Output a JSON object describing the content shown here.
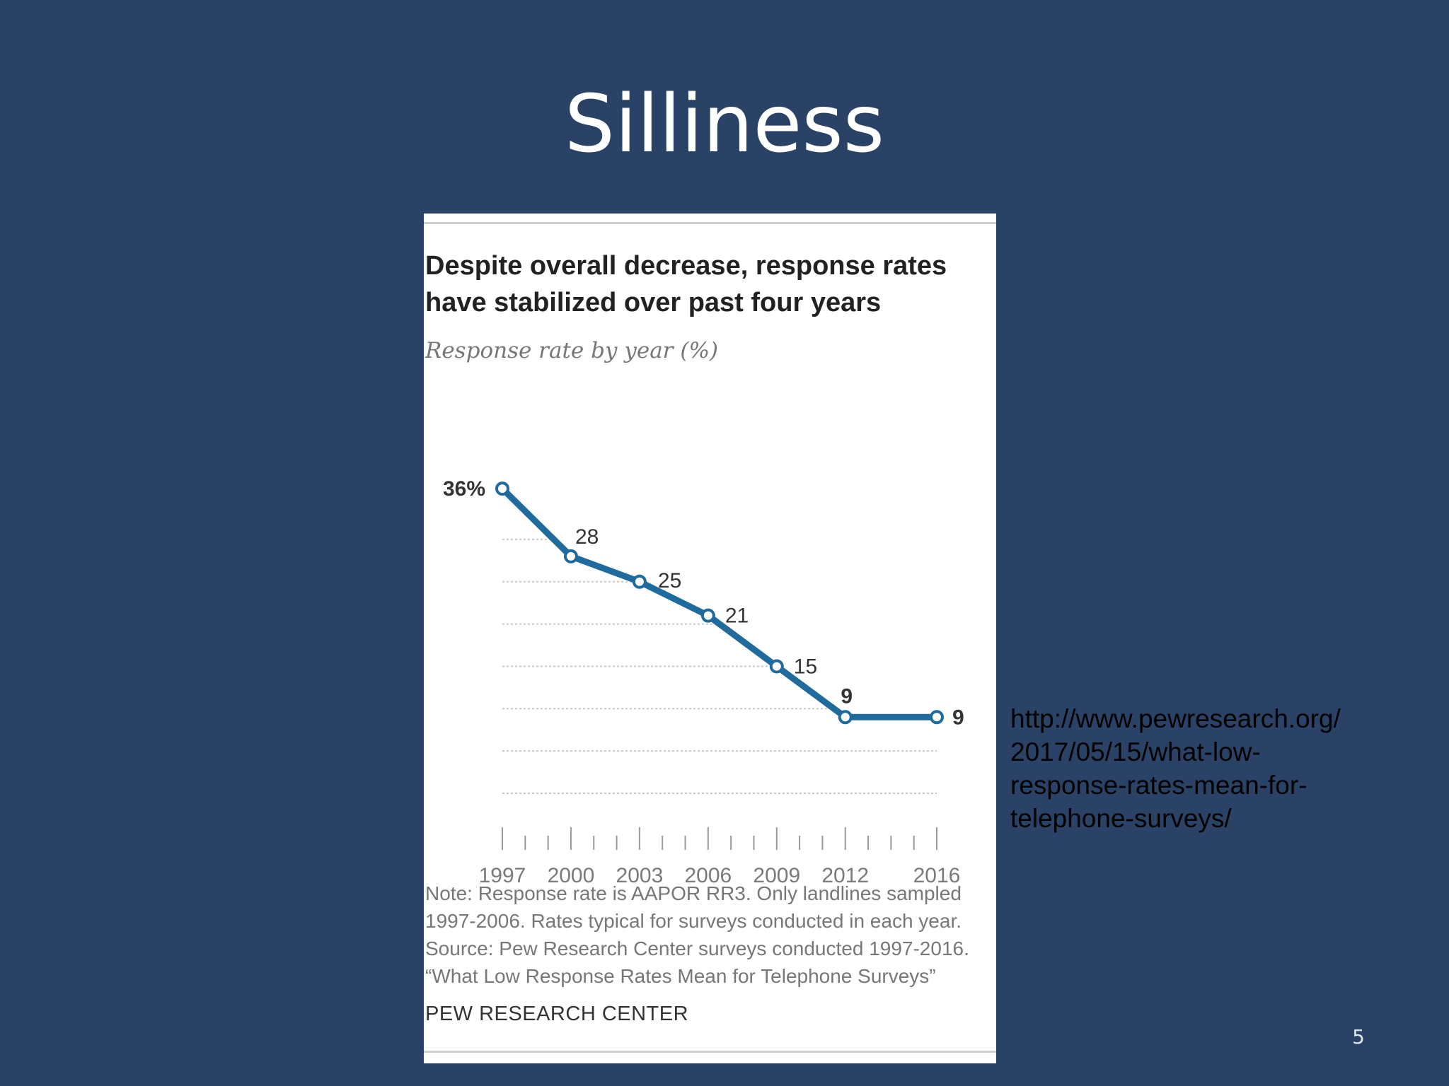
{
  "slide": {
    "title": "Silliness",
    "source_url_lines": [
      "http://www.pewresearch.org/",
      "2017/05/15/what-low-",
      "response-rates-mean-for-",
      "telephone-surveys/"
    ],
    "page_number": "5"
  },
  "chart_data": {
    "type": "line",
    "title_lines": [
      "Despite overall decrease, response rates",
      "have stabilized over past four years"
    ],
    "subtitle": "Response rate by year (%)",
    "x": [
      1997,
      2000,
      2003,
      2006,
      2009,
      2012,
      2016
    ],
    "values": [
      36,
      28,
      25,
      21,
      15,
      9,
      9
    ],
    "data_labels": [
      "36%",
      "28",
      "25",
      "21",
      "15",
      "9",
      "9"
    ],
    "tick_labels": [
      "1997",
      "2000",
      "2003",
      "2006",
      "2009",
      "2012",
      "2016"
    ],
    "xlim": [
      1997,
      2016
    ],
    "ylim": [
      0,
      36
    ],
    "gridlines": [
      5,
      10,
      15,
      20,
      25,
      30
    ],
    "grid": true,
    "line_color": "#1f6b9e",
    "note_lines": [
      "Note: Response rate is AAPOR RR3. Only landlines sampled",
      "1997-2006. Rates typical for surveys conducted in each year.",
      "Source: Pew Research Center surveys conducted 1997-2016.",
      "“What Low Response Rates Mean for Telephone Surveys”"
    ],
    "logo_text": "PEW RESEARCH CENTER"
  }
}
